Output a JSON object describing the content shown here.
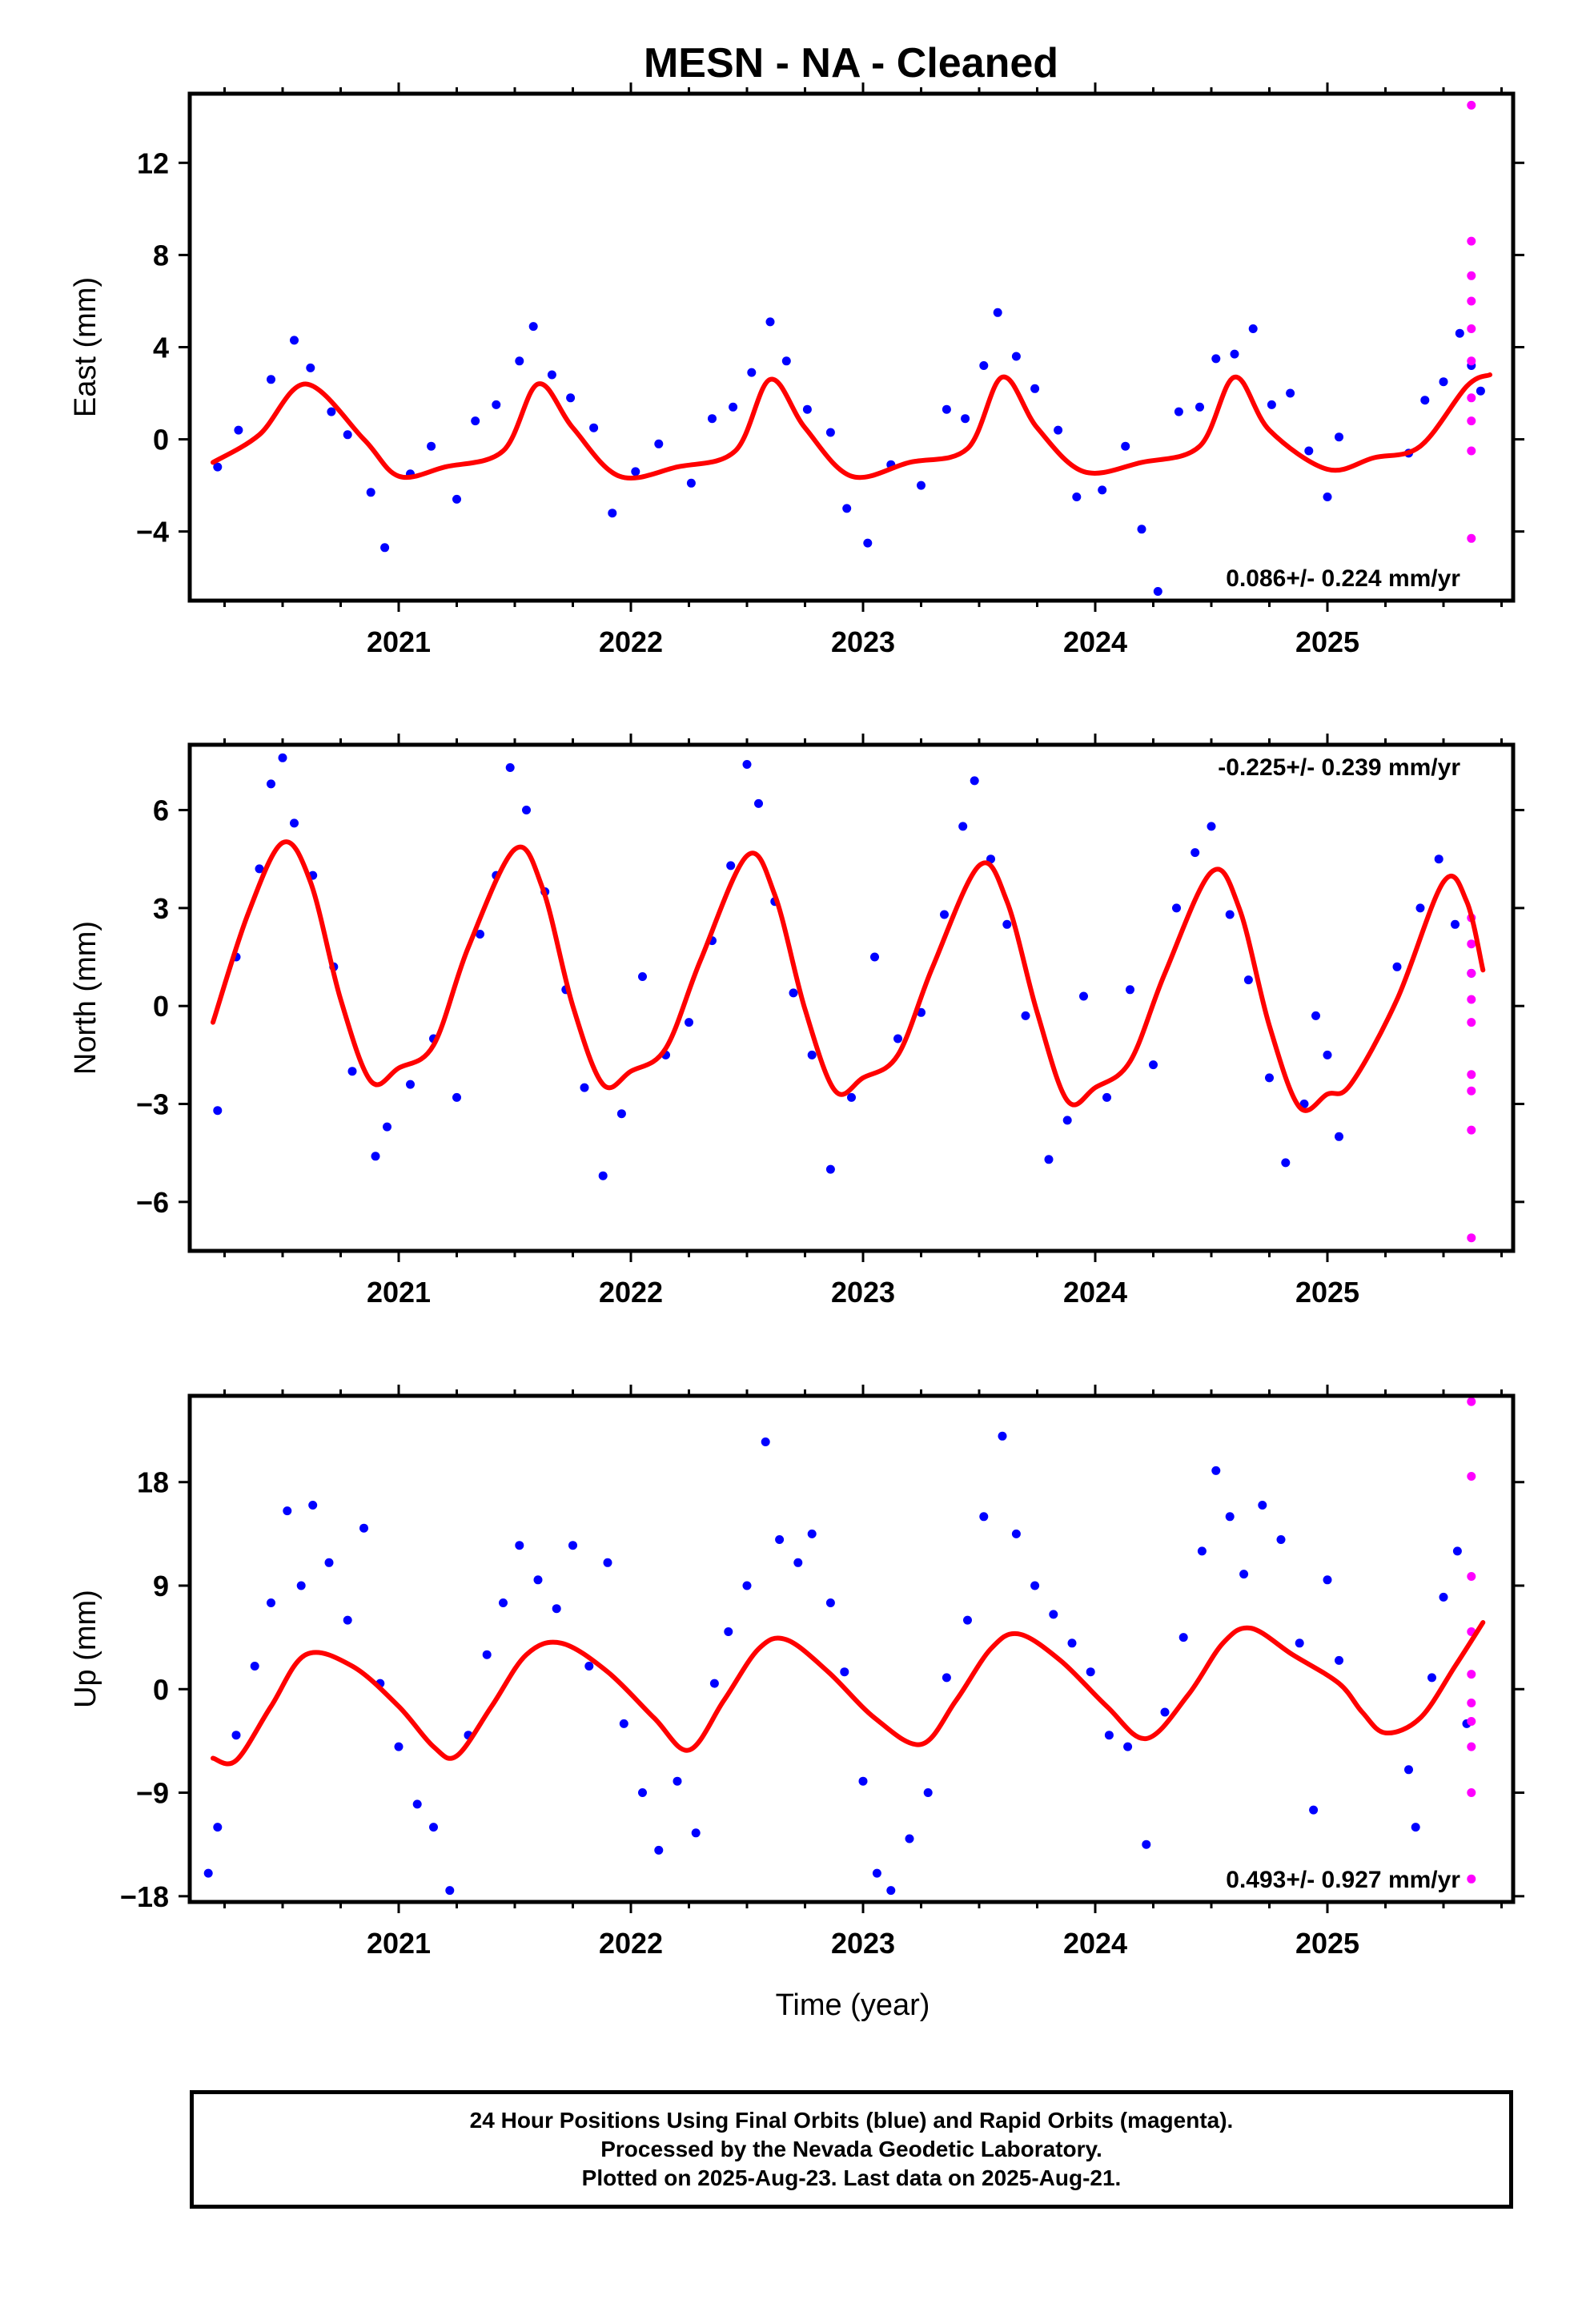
{
  "title": "MESN  - NA - Cleaned",
  "xlabel": "Time (year)",
  "notes": [
    "24 Hour Positions Using Final Orbits (blue) and Rapid Orbits (magenta).",
    "Processed by the Nevada Geodetic Laboratory.",
    "Plotted on 2025-Aug-23. Last data on 2025-Aug-21."
  ],
  "colors": {
    "final": "#0000ff",
    "rapid": "#ff00ff",
    "model": "#ff0000",
    "axes": "#000000"
  },
  "chart_data": [
    {
      "type": "scatter",
      "ylabel": "East (mm)",
      "rate": "0.086+/- 0.224 mm/yr",
      "rate_position": "bottom-right",
      "xlim": [
        2020.1,
        2025.8
      ],
      "ylim": [
        -7,
        15
      ],
      "x_ticks": [
        2021,
        2022,
        2023,
        2024,
        2025
      ],
      "y_ticks": [
        -4,
        0,
        4,
        8,
        12
      ],
      "y_tick_labels": [
        "−4",
        "0",
        "4",
        "8",
        "12"
      ],
      "fit_curve": {
        "name": "model",
        "x": [
          2020.2,
          2020.4,
          2020.6,
          2020.85,
          2021.0,
          2021.2,
          2021.45,
          2021.6,
          2021.75,
          2021.95,
          2022.2,
          2022.45,
          2022.6,
          2022.75,
          2022.95,
          2023.2,
          2023.45,
          2023.6,
          2023.75,
          2023.95,
          2024.2,
          2024.45,
          2024.6,
          2024.75,
          2025.0,
          2025.2,
          2025.4,
          2025.6,
          2025.7
        ],
        "y": [
          -1.0,
          0.2,
          2.4,
          0.0,
          -1.6,
          -1.2,
          -0.5,
          2.4,
          0.5,
          -1.6,
          -1.2,
          -0.5,
          2.6,
          0.5,
          -1.6,
          -1.0,
          -0.4,
          2.7,
          0.5,
          -1.4,
          -1.0,
          -0.3,
          2.7,
          0.4,
          -1.3,
          -0.8,
          -0.3,
          2.3,
          2.8
        ]
      },
      "final_points": [
        [
          2020.22,
          -1.2
        ],
        [
          2020.31,
          0.4
        ],
        [
          2020.45,
          2.6
        ],
        [
          2020.55,
          4.3
        ],
        [
          2020.62,
          3.1
        ],
        [
          2020.71,
          1.2
        ],
        [
          2020.78,
          0.2
        ],
        [
          2020.88,
          -2.3
        ],
        [
          2020.94,
          -4.7
        ],
        [
          2021.05,
          -1.5
        ],
        [
          2021.14,
          -0.3
        ],
        [
          2021.25,
          -2.6
        ],
        [
          2021.33,
          0.8
        ],
        [
          2021.42,
          1.5
        ],
        [
          2021.52,
          3.4
        ],
        [
          2021.58,
          4.9
        ],
        [
          2021.66,
          2.8
        ],
        [
          2021.74,
          1.8
        ],
        [
          2021.84,
          0.5
        ],
        [
          2021.92,
          -3.2
        ],
        [
          2022.02,
          -1.4
        ],
        [
          2022.12,
          -0.2
        ],
        [
          2022.26,
          -1.9
        ],
        [
          2022.35,
          0.9
        ],
        [
          2022.44,
          1.4
        ],
        [
          2022.52,
          2.9
        ],
        [
          2022.6,
          5.1
        ],
        [
          2022.67,
          3.4
        ],
        [
          2022.76,
          1.3
        ],
        [
          2022.86,
          0.3
        ],
        [
          2022.93,
          -3.0
        ],
        [
          2023.02,
          -4.5
        ],
        [
          2023.12,
          -1.1
        ],
        [
          2023.25,
          -2.0
        ],
        [
          2023.36,
          1.3
        ],
        [
          2023.44,
          0.9
        ],
        [
          2023.52,
          3.2
        ],
        [
          2023.58,
          5.5
        ],
        [
          2023.66,
          3.6
        ],
        [
          2023.74,
          2.2
        ],
        [
          2023.84,
          0.4
        ],
        [
          2023.92,
          -2.5
        ],
        [
          2024.03,
          -2.2
        ],
        [
          2024.13,
          -0.3
        ],
        [
          2024.2,
          -3.9
        ],
        [
          2024.27,
          -6.6
        ],
        [
          2024.36,
          1.2
        ],
        [
          2024.45,
          1.4
        ],
        [
          2024.52,
          3.5
        ],
        [
          2024.6,
          3.7
        ],
        [
          2024.68,
          4.8
        ],
        [
          2024.76,
          1.5
        ],
        [
          2024.84,
          2.0
        ],
        [
          2024.92,
          -0.5
        ],
        [
          2025.0,
          -2.5
        ],
        [
          2025.05,
          0.1
        ],
        [
          2025.35,
          -0.6
        ],
        [
          2025.42,
          1.7
        ],
        [
          2025.5,
          2.5
        ],
        [
          2025.57,
          4.6
        ],
        [
          2025.62,
          3.2
        ],
        [
          2025.66,
          2.1
        ]
      ],
      "rapid_points": [
        [
          2025.62,
          14.5
        ],
        [
          2025.62,
          8.6
        ],
        [
          2025.62,
          7.1
        ],
        [
          2025.62,
          6.0
        ],
        [
          2025.62,
          4.8
        ],
        [
          2025.62,
          3.4
        ],
        [
          2025.62,
          1.8
        ],
        [
          2025.62,
          0.8
        ],
        [
          2025.62,
          -0.5
        ],
        [
          2025.62,
          -4.3
        ]
      ]
    },
    {
      "type": "scatter",
      "ylabel": "North (mm)",
      "rate": "-0.225+/- 0.239 mm/yr",
      "rate_position": "top-right",
      "xlim": [
        2020.1,
        2025.8
      ],
      "ylim": [
        -7.5,
        8
      ],
      "x_ticks": [
        2021,
        2022,
        2023,
        2024,
        2025
      ],
      "y_ticks": [
        -6,
        -3,
        0,
        3,
        6
      ],
      "y_tick_labels": [
        "−6",
        "−3",
        "0",
        "3",
        "6"
      ],
      "fit_curve": {
        "name": "model",
        "x": [
          2020.2,
          2020.35,
          2020.5,
          2020.62,
          2020.75,
          2020.88,
          2021.0,
          2021.15,
          2021.3,
          2021.5,
          2021.62,
          2021.75,
          2021.88,
          2022.0,
          2022.15,
          2022.3,
          2022.5,
          2022.62,
          2022.75,
          2022.88,
          2023.0,
          2023.15,
          2023.3,
          2023.5,
          2023.62,
          2023.75,
          2023.88,
          2024.0,
          2024.15,
          2024.3,
          2024.5,
          2024.62,
          2024.75,
          2024.88,
          2025.0,
          2025.1,
          2025.3,
          2025.5,
          2025.6,
          2025.67
        ],
        "y": [
          -0.5,
          2.8,
          5.0,
          3.8,
          0.2,
          -2.3,
          -1.9,
          -1.2,
          1.8,
          4.8,
          3.6,
          0.0,
          -2.4,
          -2.0,
          -1.3,
          1.4,
          4.6,
          3.4,
          -0.1,
          -2.6,
          -2.2,
          -1.5,
          1.2,
          4.3,
          3.2,
          -0.2,
          -2.9,
          -2.5,
          -1.7,
          1.0,
          4.1,
          3.0,
          -0.6,
          -3.1,
          -2.7,
          -2.4,
          0.2,
          3.8,
          3.2,
          1.1
        ]
      },
      "final_points": [
        [
          2020.22,
          -3.2
        ],
        [
          2020.3,
          1.5
        ],
        [
          2020.4,
          4.2
        ],
        [
          2020.45,
          6.8
        ],
        [
          2020.5,
          7.6
        ],
        [
          2020.55,
          5.6
        ],
        [
          2020.63,
          4.0
        ],
        [
          2020.72,
          1.2
        ],
        [
          2020.8,
          -2.0
        ],
        [
          2020.9,
          -4.6
        ],
        [
          2020.95,
          -3.7
        ],
        [
          2021.05,
          -2.4
        ],
        [
          2021.15,
          -1.0
        ],
        [
          2021.25,
          -2.8
        ],
        [
          2021.35,
          2.2
        ],
        [
          2021.42,
          4.0
        ],
        [
          2021.48,
          7.3
        ],
        [
          2021.55,
          6.0
        ],
        [
          2021.63,
          3.5
        ],
        [
          2021.72,
          0.5
        ],
        [
          2021.8,
          -2.5
        ],
        [
          2021.88,
          -5.2
        ],
        [
          2021.96,
          -3.3
        ],
        [
          2022.05,
          0.9
        ],
        [
          2022.15,
          -1.5
        ],
        [
          2022.25,
          -0.5
        ],
        [
          2022.35,
          2.0
        ],
        [
          2022.43,
          4.3
        ],
        [
          2022.5,
          7.4
        ],
        [
          2022.55,
          6.2
        ],
        [
          2022.62,
          3.2
        ],
        [
          2022.7,
          0.4
        ],
        [
          2022.78,
          -1.5
        ],
        [
          2022.86,
          -5.0
        ],
        [
          2022.95,
          -2.8
        ],
        [
          2023.05,
          1.5
        ],
        [
          2023.15,
          -1.0
        ],
        [
          2023.25,
          -0.2
        ],
        [
          2023.35,
          2.8
        ],
        [
          2023.43,
          5.5
        ],
        [
          2023.48,
          6.9
        ],
        [
          2023.55,
          4.5
        ],
        [
          2023.62,
          2.5
        ],
        [
          2023.7,
          -0.3
        ],
        [
          2023.8,
          -4.7
        ],
        [
          2023.88,
          -3.5
        ],
        [
          2023.95,
          0.3
        ],
        [
          2024.05,
          -2.8
        ],
        [
          2024.15,
          0.5
        ],
        [
          2024.25,
          -1.8
        ],
        [
          2024.35,
          3.0
        ],
        [
          2024.43,
          4.7
        ],
        [
          2024.5,
          5.5
        ],
        [
          2024.58,
          2.8
        ],
        [
          2024.66,
          0.8
        ],
        [
          2024.75,
          -2.2
        ],
        [
          2024.82,
          -4.8
        ],
        [
          2024.9,
          -3.0
        ],
        [
          2024.95,
          -0.3
        ],
        [
          2025.0,
          -1.5
        ],
        [
          2025.05,
          -4.0
        ],
        [
          2025.3,
          1.2
        ],
        [
          2025.4,
          3.0
        ],
        [
          2025.48,
          4.5
        ],
        [
          2025.55,
          2.5
        ],
        [
          2025.62,
          1.0
        ]
      ],
      "rapid_points": [
        [
          2025.62,
          2.7
        ],
        [
          2025.62,
          1.9
        ],
        [
          2025.62,
          1.0
        ],
        [
          2025.62,
          0.2
        ],
        [
          2025.62,
          -0.5
        ],
        [
          2025.62,
          -2.1
        ],
        [
          2025.62,
          -2.6
        ],
        [
          2025.62,
          -3.8
        ],
        [
          2025.62,
          -7.1
        ]
      ]
    },
    {
      "type": "scatter",
      "ylabel": "Up (mm)",
      "rate": "0.493+/- 0.927 mm/yr",
      "rate_position": "bottom-right",
      "xlim": [
        2020.1,
        2025.8
      ],
      "ylim": [
        -18.5,
        25.5
      ],
      "x_ticks": [
        2021,
        2022,
        2023,
        2024,
        2025
      ],
      "y_ticks": [
        -18,
        -9,
        0,
        9,
        18
      ],
      "y_tick_labels": [
        "−18",
        "−9",
        "0",
        "9",
        "18"
      ],
      "fit_curve": {
        "name": "model",
        "x": [
          2020.2,
          2020.3,
          2020.45,
          2020.6,
          2020.8,
          2021.0,
          2021.15,
          2021.25,
          2021.4,
          2021.55,
          2021.7,
          2021.9,
          2022.1,
          2022.25,
          2022.4,
          2022.55,
          2022.67,
          2022.85,
          2023.05,
          2023.25,
          2023.4,
          2023.55,
          2023.67,
          2023.85,
          2024.05,
          2024.22,
          2024.4,
          2024.55,
          2024.67,
          2024.85,
          2025.05,
          2025.15,
          2025.25,
          2025.4,
          2025.55,
          2025.67
        ],
        "y": [
          -6.0,
          -6.2,
          -1.5,
          3.0,
          2.0,
          -1.5,
          -5.0,
          -5.8,
          -1.5,
          3.0,
          4.0,
          1.5,
          -2.5,
          -5.3,
          -1.0,
          3.5,
          4.3,
          1.5,
          -2.5,
          -4.8,
          -1.0,
          3.5,
          4.8,
          2.5,
          -1.5,
          -4.3,
          -0.5,
          4.0,
          5.3,
          3.0,
          0.5,
          -2.0,
          -3.8,
          -2.5,
          2.0,
          5.8
        ]
      },
      "final_points": [
        [
          2020.18,
          -16.0
        ],
        [
          2020.22,
          -12.0
        ],
        [
          2020.3,
          -4.0
        ],
        [
          2020.38,
          2.0
        ],
        [
          2020.45,
          7.5
        ],
        [
          2020.52,
          15.5
        ],
        [
          2020.58,
          9.0
        ],
        [
          2020.63,
          16.0
        ],
        [
          2020.7,
          11.0
        ],
        [
          2020.78,
          6.0
        ],
        [
          2020.85,
          14.0
        ],
        [
          2020.92,
          0.5
        ],
        [
          2021.0,
          -5.0
        ],
        [
          2021.08,
          -10.0
        ],
        [
          2021.15,
          -12.0
        ],
        [
          2021.22,
          -17.5
        ],
        [
          2021.3,
          -4.0
        ],
        [
          2021.38,
          3.0
        ],
        [
          2021.45,
          7.5
        ],
        [
          2021.52,
          12.5
        ],
        [
          2021.6,
          9.5
        ],
        [
          2021.68,
          7.0
        ],
        [
          2021.75,
          12.5
        ],
        [
          2021.82,
          2.0
        ],
        [
          2021.9,
          11.0
        ],
        [
          2021.97,
          -3.0
        ],
        [
          2022.05,
          -9.0
        ],
        [
          2022.12,
          -14.0
        ],
        [
          2022.2,
          -8.0
        ],
        [
          2022.28,
          -12.5
        ],
        [
          2022.36,
          0.5
        ],
        [
          2022.42,
          5.0
        ],
        [
          2022.5,
          9.0
        ],
        [
          2022.58,
          21.5
        ],
        [
          2022.64,
          13.0
        ],
        [
          2022.72,
          11.0
        ],
        [
          2022.78,
          13.5
        ],
        [
          2022.86,
          7.5
        ],
        [
          2022.92,
          1.5
        ],
        [
          2023.0,
          -8.0
        ],
        [
          2023.06,
          -16.0
        ],
        [
          2023.12,
          -17.5
        ],
        [
          2023.2,
          -13.0
        ],
        [
          2023.28,
          -9.0
        ],
        [
          2023.36,
          1.0
        ],
        [
          2023.45,
          6.0
        ],
        [
          2023.52,
          15.0
        ],
        [
          2023.6,
          22.0
        ],
        [
          2023.66,
          13.5
        ],
        [
          2023.74,
          9.0
        ],
        [
          2023.82,
          6.5
        ],
        [
          2023.9,
          4.0
        ],
        [
          2023.98,
          1.5
        ],
        [
          2024.06,
          -4.0
        ],
        [
          2024.14,
          -5.0
        ],
        [
          2024.22,
          -13.5
        ],
        [
          2024.3,
          -2.0
        ],
        [
          2024.38,
          4.5
        ],
        [
          2024.46,
          12.0
        ],
        [
          2024.52,
          19.0
        ],
        [
          2024.58,
          15.0
        ],
        [
          2024.64,
          10.0
        ],
        [
          2024.72,
          16.0
        ],
        [
          2024.8,
          13.0
        ],
        [
          2024.88,
          4.0
        ],
        [
          2024.94,
          -10.5
        ],
        [
          2025.0,
          9.5
        ],
        [
          2025.05,
          2.5
        ],
        [
          2025.35,
          -7.0
        ],
        [
          2025.38,
          -12.0
        ],
        [
          2025.45,
          1.0
        ],
        [
          2025.5,
          8.0
        ],
        [
          2025.56,
          12.0
        ],
        [
          2025.6,
          -3.0
        ]
      ],
      "rapid_points": [
        [
          2025.62,
          25.0
        ],
        [
          2025.62,
          18.5
        ],
        [
          2025.62,
          9.8
        ],
        [
          2025.62,
          5.0
        ],
        [
          2025.62,
          1.3
        ],
        [
          2025.62,
          -1.2
        ],
        [
          2025.62,
          -2.8
        ],
        [
          2025.62,
          -5.0
        ],
        [
          2025.62,
          -9.0
        ],
        [
          2025.62,
          -16.5
        ]
      ]
    }
  ]
}
